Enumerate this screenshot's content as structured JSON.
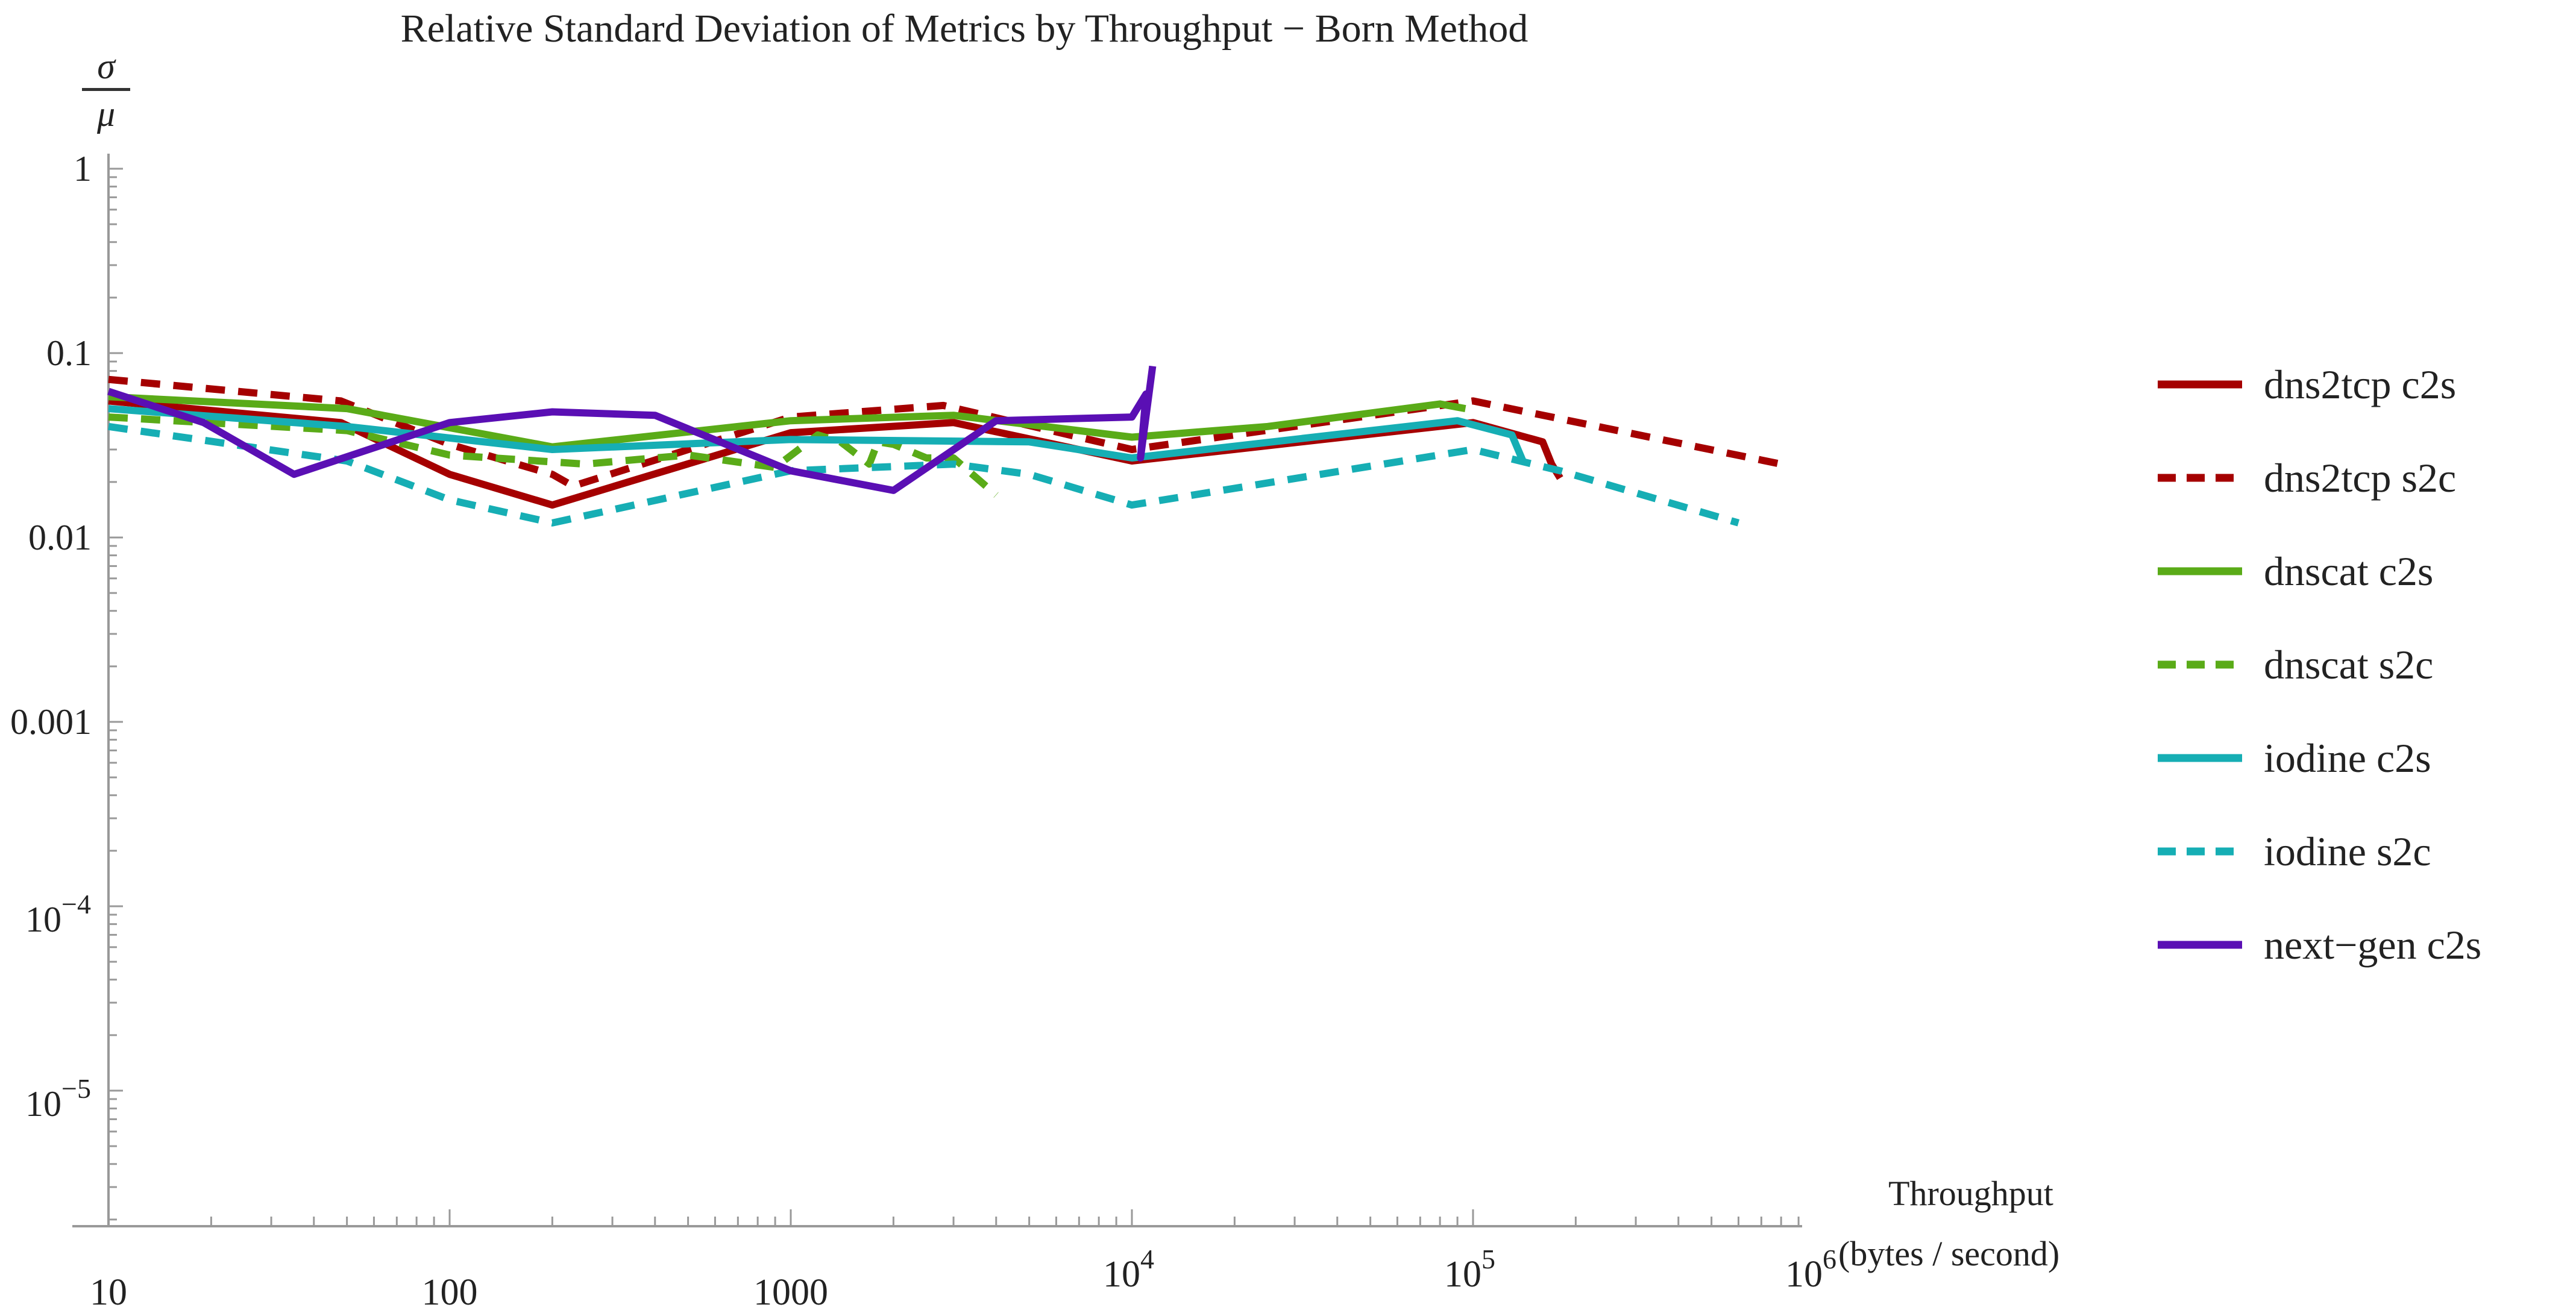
{
  "chart_data": {
    "type": "line",
    "title": "Relative Standard Deviation of Metrics by Throughput − Born Method",
    "ylabel_numerator": "σ",
    "ylabel_denominator": "μ",
    "xlabel": "Throughput",
    "xlabel_units": "(bytes / second)",
    "x_scale": "log",
    "y_scale": "log",
    "xlim": [
      10,
      1000000
    ],
    "ylim": [
      1e-06,
      1
    ],
    "grid": false,
    "legend_position": "right",
    "x_ticks": [
      {
        "value": 10,
        "label": "10",
        "power": ""
      },
      {
        "value": 100,
        "label": "100",
        "power": ""
      },
      {
        "value": 1000,
        "label": "1000",
        "power": ""
      },
      {
        "value": 10000,
        "label": "10",
        "power": "4"
      },
      {
        "value": 100000,
        "label": "10",
        "power": "5"
      },
      {
        "value": 1000000,
        "label": "10",
        "power": "6"
      }
    ],
    "y_ticks": [
      {
        "value": 1,
        "label": "1",
        "power": ""
      },
      {
        "value": 0.1,
        "label": "0.1",
        "power": ""
      },
      {
        "value": 0.01,
        "label": "0.01",
        "power": ""
      },
      {
        "value": 0.001,
        "label": "0.001",
        "power": ""
      },
      {
        "value": 0.0001,
        "label": "10",
        "power": "−4"
      },
      {
        "value": 1e-05,
        "label": "10",
        "power": "−5"
      }
    ],
    "series": [
      {
        "name": "dns2tcp c2s",
        "color": "#a50000",
        "dashed": false,
        "width": 12,
        "points": [
          [
            10,
            0.055
          ],
          [
            48,
            0.042
          ],
          [
            100,
            0.022
          ],
          [
            200,
            0.015
          ],
          [
            1000,
            0.037
          ],
          [
            3000,
            0.042
          ],
          [
            10000,
            0.026
          ],
          [
            100000,
            0.042
          ],
          [
            160000,
            0.033
          ],
          [
            170000,
            0.025
          ],
          [
            180000,
            0.021
          ]
        ]
      },
      {
        "name": "dns2tcp s2c",
        "color": "#a50000",
        "dashed": true,
        "width": 12,
        "points": [
          [
            10,
            0.072
          ],
          [
            48,
            0.055
          ],
          [
            100,
            0.032
          ],
          [
            200,
            0.022
          ],
          [
            230,
            0.019
          ],
          [
            1000,
            0.045
          ],
          [
            2800,
            0.052
          ],
          [
            10000,
            0.03
          ],
          [
            100000,
            0.055
          ],
          [
            800000,
            0.025
          ]
        ]
      },
      {
        "name": "dnscat c2s",
        "color": "#5aab18",
        "dashed": false,
        "width": 12,
        "points": [
          [
            10,
            0.058
          ],
          [
            50,
            0.05
          ],
          [
            200,
            0.031
          ],
          [
            1000,
            0.043
          ],
          [
            3000,
            0.046
          ],
          [
            10000,
            0.035
          ],
          [
            25000,
            0.04
          ],
          [
            80000,
            0.053
          ],
          [
            95000,
            0.05
          ]
        ]
      },
      {
        "name": "dnscat s2c",
        "color": "#5aab18",
        "dashed": true,
        "width": 12,
        "points": [
          [
            10,
            0.045
          ],
          [
            50,
            0.038
          ],
          [
            100,
            0.028
          ],
          [
            250,
            0.025
          ],
          [
            500,
            0.028
          ],
          [
            900,
            0.024
          ],
          [
            1200,
            0.036
          ],
          [
            1400,
            0.033
          ],
          [
            1700,
            0.025
          ],
          [
            1800,
            0.033
          ],
          [
            2000,
            0.032
          ],
          [
            2500,
            0.027
          ],
          [
            3000,
            0.027
          ],
          [
            4000,
            0.017
          ]
        ]
      },
      {
        "name": "iodine c2s",
        "color": "#16aeb4",
        "dashed": false,
        "width": 12,
        "points": [
          [
            10,
            0.05
          ],
          [
            50,
            0.04
          ],
          [
            200,
            0.03
          ],
          [
            1000,
            0.034
          ],
          [
            5000,
            0.033
          ],
          [
            10000,
            0.027
          ],
          [
            90000,
            0.043
          ],
          [
            130000,
            0.036
          ],
          [
            140000,
            0.026
          ]
        ]
      },
      {
        "name": "iodine s2c",
        "color": "#16aeb4",
        "dashed": true,
        "width": 12,
        "points": [
          [
            10,
            0.04
          ],
          [
            50,
            0.026
          ],
          [
            100,
            0.016
          ],
          [
            200,
            0.012
          ],
          [
            1000,
            0.023
          ],
          [
            3000,
            0.025
          ],
          [
            5000,
            0.022
          ],
          [
            10000,
            0.015
          ],
          [
            100000,
            0.03
          ],
          [
            180000,
            0.023
          ],
          [
            600000,
            0.012
          ]
        ]
      },
      {
        "name": "next−gen c2s",
        "color": "#5a0fb4",
        "dashed": false,
        "width": 12,
        "points": [
          [
            10,
            0.062
          ],
          [
            19,
            0.042
          ],
          [
            35,
            0.022
          ],
          [
            100,
            0.042
          ],
          [
            200,
            0.048
          ],
          [
            400,
            0.046
          ],
          [
            1000,
            0.023
          ],
          [
            2000,
            0.018
          ],
          [
            4000,
            0.043
          ],
          [
            10000,
            0.045
          ],
          [
            11000,
            0.06
          ],
          [
            10600,
            0.027
          ],
          [
            11500,
            0.085
          ]
        ]
      }
    ]
  }
}
